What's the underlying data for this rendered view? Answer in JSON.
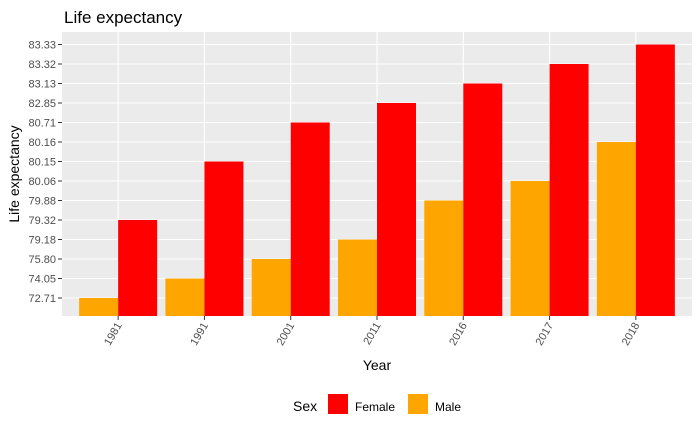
{
  "chart_data": {
    "type": "bar",
    "title": "Life expectancy",
    "xlabel": "Year",
    "ylabel": "Life expectancy",
    "categories": [
      "1981",
      "1991",
      "2001",
      "2011",
      "2016",
      "2017",
      "2018"
    ],
    "y_scale": "discrete",
    "y_ticks": [
      "72.71",
      "74.05",
      "75.80",
      "79.18",
      "79.32",
      "79.88",
      "80.06",
      "80.15",
      "80.16",
      "80.71",
      "82.85",
      "83.13",
      "83.32",
      "83.33"
    ],
    "series": [
      {
        "name": "Male",
        "color": "#FFA500",
        "values": [
          72.71,
          74.05,
          75.8,
          79.18,
          79.88,
          80.06,
          80.16
        ]
      },
      {
        "name": "Female",
        "color": "#FF0000",
        "values": [
          79.32,
          80.15,
          80.71,
          82.85,
          83.13,
          83.32,
          83.33
        ]
      }
    ],
    "grid": true,
    "legend": {
      "title": "Sex",
      "position": "bottom",
      "entries": [
        {
          "label": "Female",
          "color": "#FF0000"
        },
        {
          "label": "Male",
          "color": "#FFA500"
        }
      ]
    },
    "panel_color": "#EBEBEB",
    "tick_rotation_deg": -60
  }
}
